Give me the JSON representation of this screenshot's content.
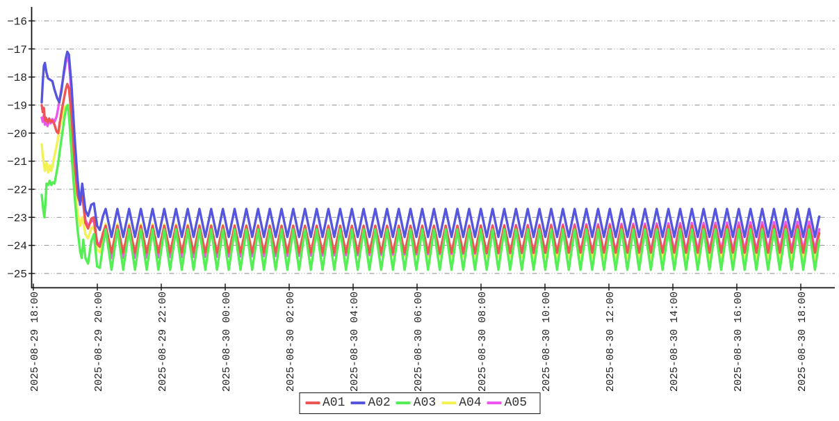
{
  "chart_data": {
    "type": "line",
    "title": "",
    "grid": true,
    "background": "#ffffff",
    "x_axis": {
      "tick_interval": "2 hours",
      "label_rotation": -90,
      "ticks": [
        "2025-08-29 18:00",
        "2025-08-29 20:00",
        "2025-08-29 22:00",
        "2025-08-30 00:00",
        "2025-08-30 02:00",
        "2025-08-30 04:00",
        "2025-08-30 06:00",
        "2025-08-30 08:00",
        "2025-08-30 10:00",
        "2025-08-30 12:00",
        "2025-08-30 14:00",
        "2025-08-30 16:00",
        "2025-08-30 18:00"
      ]
    },
    "y_axis": {
      "ticks": [
        -16,
        -17,
        -18,
        -19,
        -20,
        -21,
        -22,
        -23,
        -24,
        -25
      ],
      "min": -25.5,
      "max": -15.6
    },
    "legend": {
      "position": "bottom-center",
      "entries": [
        "A01",
        "A02",
        "A03",
        "A04",
        "A05"
      ]
    },
    "time_model": {
      "comment": "t = minutes after first sample (~18:16). Transient anchors cover t 0-120; after that each series oscillates.",
      "t_end_min": 1459,
      "oscillation": {
        "period_min": 22,
        "peaks_at_mod": 10,
        "steady_from_min": 120
      }
    },
    "draw_order": [
      "A04",
      "A05",
      "A01",
      "A02",
      "A03"
    ],
    "series": [
      {
        "name": "A01",
        "color": "#ee5555",
        "steady": {
          "mean_start": -23.78,
          "mean_end": -23.78,
          "amp": 0.48
        },
        "transient_anchors": [
          [
            0,
            -19.0
          ],
          [
            2,
            -19.25
          ],
          [
            4,
            -19.1
          ],
          [
            6,
            -19.55
          ],
          [
            8,
            -19.45
          ],
          [
            11,
            -19.62
          ],
          [
            14,
            -19.48
          ],
          [
            17,
            -19.6
          ],
          [
            20,
            -19.55
          ],
          [
            24,
            -19.7
          ],
          [
            28,
            -19.95
          ],
          [
            31,
            -20.0
          ],
          [
            34,
            -19.6
          ],
          [
            38,
            -19.15
          ],
          [
            42,
            -18.75
          ],
          [
            45,
            -18.45
          ],
          [
            48,
            -18.25
          ],
          [
            51,
            -18.4
          ],
          [
            56,
            -19.4
          ],
          [
            62,
            -21.1
          ],
          [
            67,
            -22.2
          ],
          [
            72,
            -22.5
          ],
          [
            76,
            -22.2
          ],
          [
            82,
            -23.2
          ],
          [
            87,
            -23.4
          ],
          [
            93,
            -23.05
          ],
          [
            98,
            -23.0
          ],
          [
            104,
            -23.95
          ],
          [
            109,
            -24.05
          ],
          [
            115,
            -23.55
          ],
          [
            120,
            -23.3
          ]
        ]
      },
      {
        "name": "A02",
        "color": "#5555dd",
        "steady": {
          "mean_start": -23.2,
          "mean_end": -23.2,
          "amp": 0.5
        },
        "transient_anchors": [
          [
            0,
            -18.9
          ],
          [
            2,
            -18.2
          ],
          [
            4,
            -17.6
          ],
          [
            6,
            -17.5
          ],
          [
            9,
            -17.85
          ],
          [
            12,
            -18.05
          ],
          [
            16,
            -18.1
          ],
          [
            20,
            -18.15
          ],
          [
            24,
            -18.45
          ],
          [
            29,
            -18.75
          ],
          [
            33,
            -18.9
          ],
          [
            37,
            -18.5
          ],
          [
            41,
            -17.9
          ],
          [
            45,
            -17.35
          ],
          [
            48,
            -17.1
          ],
          [
            51,
            -17.2
          ],
          [
            56,
            -18.3
          ],
          [
            62,
            -20.2
          ],
          [
            67,
            -21.6
          ],
          [
            72,
            -22.55
          ],
          [
            76,
            -21.8
          ],
          [
            82,
            -22.75
          ],
          [
            87,
            -22.95
          ],
          [
            93,
            -22.55
          ],
          [
            98,
            -22.5
          ],
          [
            104,
            -23.3
          ],
          [
            109,
            -23.45
          ],
          [
            115,
            -22.95
          ],
          [
            120,
            -22.7
          ]
        ]
      },
      {
        "name": "A03",
        "color": "#55ee55",
        "steady": {
          "mean_start": -24.15,
          "mean_end": -24.15,
          "amp": 0.72
        },
        "transient_anchors": [
          [
            0,
            -22.2
          ],
          [
            3,
            -22.75
          ],
          [
            5,
            -23.0
          ],
          [
            7,
            -22.5
          ],
          [
            9,
            -21.8
          ],
          [
            12,
            -21.85
          ],
          [
            15,
            -21.7
          ],
          [
            18,
            -21.85
          ],
          [
            21,
            -21.75
          ],
          [
            24,
            -21.8
          ],
          [
            27,
            -21.5
          ],
          [
            31,
            -21.05
          ],
          [
            35,
            -20.5
          ],
          [
            39,
            -19.95
          ],
          [
            43,
            -19.4
          ],
          [
            46,
            -19.1
          ],
          [
            49,
            -19.0
          ],
          [
            52,
            -19.6
          ],
          [
            57,
            -21.0
          ],
          [
            62,
            -22.3
          ],
          [
            67,
            -23.4
          ],
          [
            72,
            -24.2
          ],
          [
            75,
            -24.45
          ],
          [
            78,
            -23.8
          ],
          [
            82,
            -24.45
          ],
          [
            87,
            -24.65
          ],
          [
            93,
            -23.85
          ],
          [
            98,
            -23.6
          ],
          [
            104,
            -24.75
          ],
          [
            109,
            -24.8
          ],
          [
            115,
            -24.0
          ],
          [
            120,
            -23.43
          ]
        ]
      },
      {
        "name": "A04",
        "color": "#f2f255",
        "steady": {
          "mean_start": -23.75,
          "mean_end": -24.0,
          "amp": 0.52
        },
        "transient_anchors": [
          [
            0,
            -20.4
          ],
          [
            2,
            -20.8
          ],
          [
            4,
            -21.1
          ],
          [
            6,
            -21.35
          ],
          [
            9,
            -21.05
          ],
          [
            12,
            -21.4
          ],
          [
            15,
            -21.15
          ],
          [
            18,
            -21.35
          ],
          [
            21,
            -21.1
          ],
          [
            24,
            -20.8
          ],
          [
            28,
            -20.45
          ],
          [
            32,
            -20.05
          ],
          [
            36,
            -19.6
          ],
          [
            40,
            -19.3
          ],
          [
            44,
            -19.05
          ],
          [
            48,
            -19.0
          ],
          [
            51,
            -19.15
          ],
          [
            56,
            -20.2
          ],
          [
            62,
            -21.7
          ],
          [
            67,
            -22.8
          ],
          [
            72,
            -23.3
          ],
          [
            76,
            -23.0
          ],
          [
            82,
            -23.6
          ],
          [
            87,
            -23.75
          ],
          [
            93,
            -23.4
          ],
          [
            98,
            -23.3
          ],
          [
            104,
            -24.15
          ],
          [
            109,
            -24.25
          ],
          [
            115,
            -23.65
          ],
          [
            120,
            -23.23
          ]
        ]
      },
      {
        "name": "A05",
        "color": "#ee55ee",
        "steady": {
          "mean_start": -23.95,
          "mean_end": -23.65,
          "amp": 0.5
        },
        "transient_anchors": [
          [
            0,
            -19.45
          ],
          [
            2,
            -19.6
          ],
          [
            4,
            -19.35
          ],
          [
            6,
            -19.7
          ],
          [
            8,
            -19.5
          ],
          [
            11,
            -19.75
          ],
          [
            14,
            -19.55
          ],
          [
            17,
            -19.65
          ],
          [
            20,
            -19.5
          ],
          [
            24,
            -19.6
          ],
          [
            28,
            -19.4
          ],
          [
            31,
            -19.1
          ],
          [
            34,
            -18.75
          ],
          [
            38,
            -18.3
          ],
          [
            42,
            -17.85
          ],
          [
            45,
            -17.5
          ],
          [
            48,
            -17.3
          ],
          [
            51,
            -17.45
          ],
          [
            56,
            -18.6
          ],
          [
            62,
            -20.4
          ],
          [
            67,
            -21.8
          ],
          [
            72,
            -22.4
          ],
          [
            76,
            -22.15
          ],
          [
            82,
            -23.1
          ],
          [
            87,
            -23.3
          ],
          [
            93,
            -23.15
          ],
          [
            98,
            -23.1
          ],
          [
            104,
            -23.9
          ],
          [
            109,
            -23.95
          ],
          [
            115,
            -23.6
          ],
          [
            120,
            -23.45
          ]
        ]
      }
    ]
  }
}
